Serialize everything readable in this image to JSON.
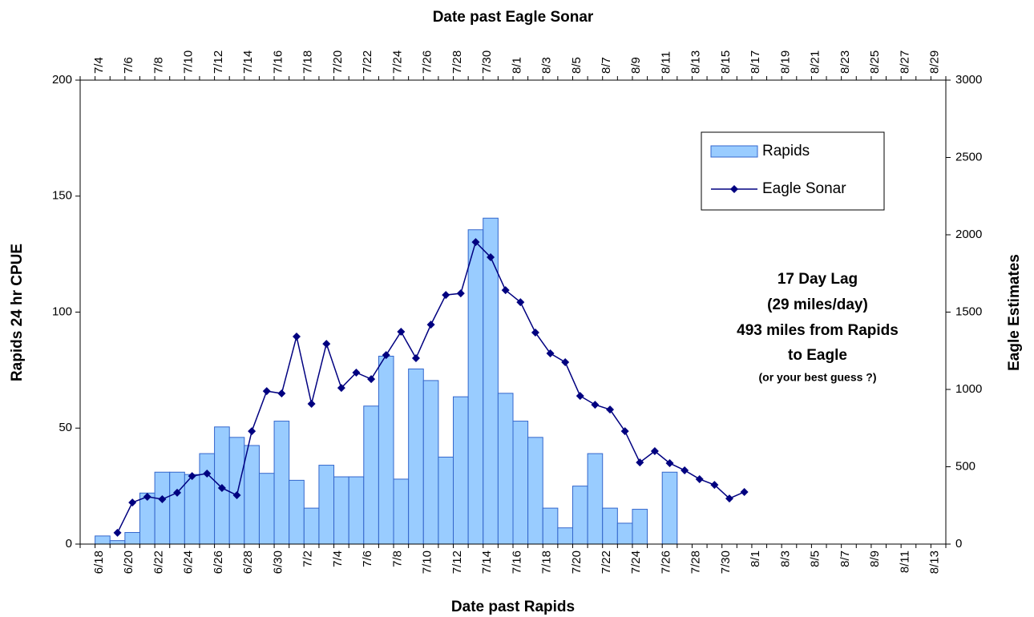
{
  "chart_data": {
    "type": "bar_line",
    "x_label": "Date past Rapids",
    "x2_label": "Date past Eagle Sonar",
    "y_label": "Rapids 24 hr CPUE",
    "y2_label": "Eagle Estimates",
    "categories": [
      null,
      "6/18",
      null,
      "6/20",
      null,
      "6/22",
      null,
      "6/24",
      null,
      "6/26",
      null,
      "6/28",
      null,
      "6/30",
      null,
      "7/2",
      null,
      "7/4",
      null,
      "7/6",
      null,
      "7/8",
      null,
      "7/10",
      null,
      "7/12",
      null,
      "7/14",
      null,
      "7/16",
      null,
      "7/18",
      null,
      "7/20",
      null,
      "7/22",
      null,
      "7/24",
      null,
      "7/26",
      null,
      "7/28",
      null,
      "7/30",
      null,
      "8/1",
      null,
      "8/3",
      null,
      "8/5",
      null,
      "8/7",
      null,
      "8/9",
      null,
      "8/11",
      null,
      "8/13"
    ],
    "categories2": [
      null,
      "7/4",
      null,
      "7/6",
      null,
      "7/8",
      null,
      "7/10",
      null,
      "7/12",
      null,
      "7/14",
      null,
      "7/16",
      null,
      "7/18",
      null,
      "7/20",
      null,
      "7/22",
      null,
      "7/24",
      null,
      "7/26",
      null,
      "7/28",
      null,
      "7/30",
      null,
      "8/1",
      null,
      "8/3",
      null,
      "8/5",
      null,
      "8/7",
      null,
      "8/9",
      null,
      "8/11",
      null,
      "8/13",
      null,
      "8/15",
      null,
      "8/17",
      null,
      "8/19",
      null,
      "8/21",
      null,
      "8/23",
      null,
      "8/25",
      null,
      "8/27",
      null,
      "8/29"
    ],
    "series": [
      {
        "name": "Rapids",
        "type": "bar",
        "color": "#99ccff",
        "edge": "#3366cc",
        "values": [
          null,
          3.5,
          1.5,
          5,
          22,
          31,
          31,
          30,
          39,
          50.5,
          46,
          42.5,
          30.5,
          53,
          27.5,
          15.5,
          34,
          29,
          29,
          59.5,
          81,
          28,
          75.5,
          70.5,
          37.5,
          63.5,
          135.5,
          140.5,
          65,
          53,
          46,
          15.5,
          7,
          25,
          39,
          15.5,
          9,
          15,
          null,
          31,
          null,
          null,
          null,
          null,
          null,
          null,
          null,
          null,
          null,
          null,
          null,
          null,
          null,
          null,
          null,
          null,
          null,
          null
        ]
      },
      {
        "name": "Eagle Sonar",
        "type": "line",
        "axis": "y2",
        "color": "#000080",
        "values": [
          null,
          null,
          73,
          269,
          306,
          290,
          332,
          440,
          456,
          363,
          316,
          730,
          989,
          974,
          1342,
          907,
          1295,
          1010,
          1109,
          1067,
          1222,
          1373,
          1202,
          1419,
          1611,
          1621,
          1953,
          1855,
          1642,
          1564,
          1368,
          1233,
          1176,
          958,
          901,
          870,
          730,
          528,
          601,
          523,
          477,
          420,
          383,
          295,
          337,
          null,
          null,
          null,
          null,
          null,
          null,
          null,
          null,
          null,
          null,
          null,
          null,
          null
        ]
      }
    ],
    "ylim": [
      0,
      200
    ],
    "yticks": [
      0,
      50,
      100,
      150,
      200
    ],
    "y2lim": [
      0,
      3000
    ],
    "y2ticks": [
      0,
      500,
      1000,
      1500,
      2000,
      2500,
      3000
    ],
    "legend": "upper right",
    "annotations": [
      "17 Day Lag",
      "(29 miles/day)",
      "493 miles from Rapids",
      "to Eagle",
      "(or your best guess ?)"
    ]
  }
}
